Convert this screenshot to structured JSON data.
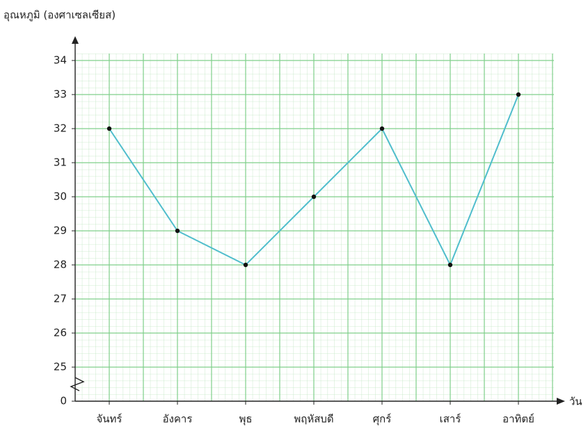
{
  "chart_data": {
    "type": "line",
    "y_label": "อุณหภูมิ (องศาเซลเซียส)",
    "x_label": "วัน",
    "categories": [
      "จันทร์",
      "อังคาร",
      "พุธ",
      "พฤหัสบดี",
      "ศุกร์",
      "เสาร์",
      "อาทิตย์"
    ],
    "series": [
      {
        "color": "#4fbdcc",
        "values": [
          32,
          29,
          28,
          30,
          32,
          28,
          33
        ]
      }
    ],
    "ylim": [
      0,
      34
    ],
    "axis_break": [
      0,
      24
    ],
    "yticks": [
      0,
      25,
      26,
      27,
      28,
      29,
      30,
      31,
      32,
      33,
      34
    ],
    "grid": true
  }
}
